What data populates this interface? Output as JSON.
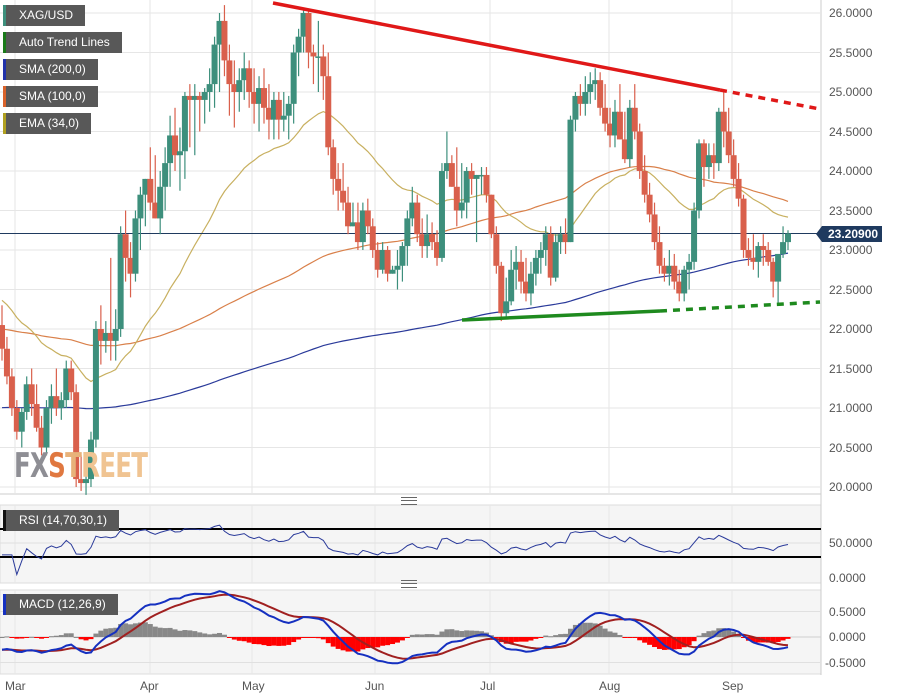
{
  "legend": [
    {
      "label": "XAG/USD",
      "color": "#3d8f7c"
    },
    {
      "label": "Auto Trend Lines",
      "color": "#1a7a1a"
    },
    {
      "label": "SMA (200,0)",
      "color": "#2233aa"
    },
    {
      "label": "SMA (100,0)",
      "color": "#d9622b"
    },
    {
      "label": "EMA (34,0)",
      "color": "#b0a020"
    }
  ],
  "current_price": "23.20900",
  "watermark": {
    "fx": "FX",
    "s": "S",
    "t": "T",
    "reet": "REET"
  },
  "rsi_label": "RSI (14,70,30,1)",
  "macd_label": "MACD (12,26,9)",
  "price_axis": [
    "26.0000",
    "25.5000",
    "25.0000",
    "24.5000",
    "24.0000",
    "23.5000",
    "23.0000",
    "22.5000",
    "22.0000",
    "21.5000",
    "21.0000",
    "20.5000",
    "20.0000"
  ],
  "rsi_axis": [
    "50.0000",
    "0.0000"
  ],
  "macd_axis": [
    "0.5000",
    "0.0000",
    "-0.5000"
  ],
  "x_axis": [
    "Mar",
    "Apr",
    "May",
    "Jun",
    "Jul",
    "Aug",
    "Sep"
  ],
  "colors": {
    "up": "#3d8f7c",
    "down": "#d9604c",
    "sma200": "#2a3a9a",
    "sma100": "#d9804a",
    "ema34": "#c8b060",
    "resistance": "#e01818",
    "support": "#1e8a1e",
    "rsi": "#2a3a9a",
    "macd": "#1530c0",
    "signal": "#a02020",
    "hist_pos": "#888888",
    "hist_neg": "#ff0000"
  },
  "chart_data": {
    "type": "candlestick",
    "title": "XAG/USD",
    "symbol": "XAG/USD",
    "ylim": [
      19.9,
      26.1
    ],
    "yticks": [
      20.0,
      20.5,
      21.0,
      21.5,
      22.0,
      22.5,
      23.0,
      23.5,
      24.0,
      24.5,
      25.0,
      25.5,
      26.0
    ],
    "x_labels": [
      "Mar",
      "Apr",
      "May",
      "Jun",
      "Jul",
      "Aug",
      "Sep"
    ],
    "last_price": 23.209,
    "candles": [
      [
        22.05,
        22.3,
        21.6,
        21.75
      ],
      [
        21.75,
        21.9,
        21.3,
        21.4
      ],
      [
        21.4,
        21.5,
        20.9,
        21.0
      ],
      [
        21.0,
        21.1,
        20.6,
        20.7
      ],
      [
        20.7,
        21.0,
        20.5,
        20.95
      ],
      [
        20.95,
        21.4,
        20.85,
        21.3
      ],
      [
        21.3,
        21.5,
        20.9,
        21.05
      ],
      [
        21.05,
        21.3,
        20.7,
        20.75
      ],
      [
        20.75,
        20.9,
        20.4,
        20.5
      ],
      [
        20.5,
        21.1,
        20.4,
        21.0
      ],
      [
        21.0,
        21.3,
        20.8,
        21.15
      ],
      [
        21.15,
        21.5,
        20.9,
        21.0
      ],
      [
        21.0,
        21.2,
        20.85,
        21.1
      ],
      [
        21.1,
        21.6,
        21.0,
        21.5
      ],
      [
        21.5,
        21.6,
        21.1,
        21.2
      ],
      [
        21.2,
        21.3,
        20.0,
        20.1
      ],
      [
        20.1,
        20.4,
        19.95,
        20.05
      ],
      [
        20.05,
        20.3,
        19.9,
        20.1
      ],
      [
        20.1,
        20.7,
        20.0,
        20.6
      ],
      [
        20.6,
        22.1,
        20.5,
        22.0
      ],
      [
        22.0,
        22.3,
        21.55,
        21.85
      ],
      [
        21.85,
        22.1,
        21.7,
        21.95
      ],
      [
        21.95,
        22.9,
        21.6,
        21.85
      ],
      [
        21.85,
        22.25,
        21.6,
        22.0
      ],
      [
        22.0,
        23.3,
        21.9,
        23.2
      ],
      [
        23.2,
        23.5,
        22.6,
        22.9
      ],
      [
        22.9,
        23.1,
        22.4,
        22.7
      ],
      [
        22.7,
        23.5,
        22.6,
        23.4
      ],
      [
        23.4,
        23.8,
        23.0,
        23.7
      ],
      [
        23.7,
        23.9,
        23.3,
        23.9
      ],
      [
        23.9,
        24.3,
        23.5,
        23.6
      ],
      [
        23.6,
        24.2,
        23.4,
        23.4
      ],
      [
        23.4,
        24.0,
        23.2,
        23.8
      ],
      [
        23.8,
        24.3,
        23.5,
        24.1
      ],
      [
        24.1,
        24.7,
        23.8,
        24.45
      ],
      [
        24.45,
        24.8,
        24.0,
        24.2
      ],
      [
        24.2,
        24.55,
        23.75,
        24.25
      ],
      [
        24.25,
        25.0,
        23.9,
        24.95
      ],
      [
        24.95,
        25.1,
        24.3,
        24.9
      ],
      [
        24.9,
        25.1,
        24.2,
        24.95
      ],
      [
        24.95,
        25.0,
        24.5,
        24.9
      ],
      [
        24.9,
        25.05,
        24.6,
        25.0
      ],
      [
        25.0,
        25.3,
        24.75,
        25.1
      ],
      [
        25.1,
        25.7,
        24.8,
        25.6
      ],
      [
        25.6,
        26.0,
        25.0,
        25.9
      ],
      [
        25.9,
        26.1,
        25.2,
        25.4
      ],
      [
        25.4,
        25.6,
        24.7,
        25.1
      ],
      [
        25.1,
        25.4,
        24.55,
        25.0
      ],
      [
        25.0,
        25.3,
        24.75,
        25.15
      ],
      [
        25.15,
        25.5,
        24.9,
        25.3
      ],
      [
        25.3,
        25.4,
        24.8,
        25.0
      ],
      [
        25.0,
        25.3,
        24.6,
        24.85
      ],
      [
        24.85,
        25.2,
        24.5,
        25.05
      ],
      [
        25.05,
        25.3,
        24.6,
        24.8
      ],
      [
        24.8,
        25.1,
        24.4,
        24.65
      ],
      [
        24.65,
        25.0,
        24.4,
        24.9
      ],
      [
        24.9,
        25.0,
        24.4,
        24.65
      ],
      [
        24.65,
        25.0,
        24.5,
        24.7
      ],
      [
        24.7,
        24.95,
        24.4,
        24.85
      ],
      [
        24.85,
        25.6,
        24.6,
        25.5
      ],
      [
        25.5,
        25.8,
        25.2,
        25.7
      ],
      [
        25.7,
        26.05,
        25.5,
        26.0
      ],
      [
        26.0,
        26.05,
        25.3,
        25.5
      ],
      [
        25.5,
        25.6,
        25.1,
        25.45
      ],
      [
        25.45,
        25.9,
        25.0,
        25.45
      ],
      [
        25.45,
        25.6,
        24.9,
        25.2
      ],
      [
        25.2,
        25.5,
        24.2,
        24.3
      ],
      [
        24.3,
        24.4,
        23.7,
        23.9
      ],
      [
        23.9,
        24.1,
        23.5,
        23.75
      ],
      [
        23.75,
        24.1,
        23.5,
        23.6
      ],
      [
        23.6,
        23.8,
        23.2,
        23.3
      ],
      [
        23.3,
        23.6,
        23.3,
        23.35
      ],
      [
        23.35,
        23.6,
        23.0,
        23.1
      ],
      [
        23.1,
        23.6,
        23.0,
        23.5
      ],
      [
        23.5,
        23.65,
        23.2,
        23.3
      ],
      [
        23.3,
        23.4,
        22.9,
        23.0
      ],
      [
        23.0,
        23.1,
        22.65,
        22.75
      ],
      [
        22.75,
        23.1,
        22.7,
        23.0
      ],
      [
        23.0,
        23.05,
        22.6,
        22.7
      ],
      [
        22.7,
        22.8,
        22.7,
        22.75
      ],
      [
        22.75,
        23.0,
        22.5,
        22.8
      ],
      [
        22.8,
        23.1,
        22.6,
        23.05
      ],
      [
        23.05,
        23.5,
        22.8,
        23.4
      ],
      [
        23.4,
        23.8,
        23.3,
        23.6
      ],
      [
        23.6,
        23.7,
        23.1,
        23.2
      ],
      [
        23.2,
        23.4,
        22.9,
        23.05
      ],
      [
        23.05,
        23.45,
        22.9,
        23.2
      ],
      [
        23.2,
        23.35,
        23.0,
        23.1
      ],
      [
        23.1,
        23.25,
        22.8,
        22.9
      ],
      [
        22.9,
        24.1,
        22.85,
        24.0
      ],
      [
        24.0,
        24.5,
        23.9,
        24.1
      ],
      [
        24.1,
        24.2,
        23.8,
        23.8
      ],
      [
        23.8,
        24.3,
        23.3,
        23.5
      ],
      [
        23.5,
        24.1,
        23.4,
        23.6
      ],
      [
        23.6,
        24.05,
        23.4,
        24.0
      ],
      [
        24.0,
        24.1,
        23.7,
        23.9
      ],
      [
        23.9,
        23.95,
        23.1,
        23.95
      ],
      [
        23.95,
        24.05,
        23.7,
        23.95
      ],
      [
        23.95,
        24.05,
        23.6,
        23.7
      ],
      [
        23.7,
        23.7,
        23.15,
        23.2
      ],
      [
        23.2,
        23.3,
        22.7,
        22.8
      ],
      [
        22.8,
        22.85,
        22.1,
        22.2
      ],
      [
        22.2,
        22.65,
        22.15,
        22.35
      ],
      [
        22.35,
        23.0,
        22.3,
        22.75
      ],
      [
        22.75,
        23.05,
        22.5,
        22.85
      ],
      [
        22.85,
        23.0,
        22.45,
        22.6
      ],
      [
        22.6,
        22.9,
        22.35,
        22.45
      ],
      [
        22.45,
        22.85,
        22.3,
        22.7
      ],
      [
        22.7,
        23.0,
        22.55,
        22.9
      ],
      [
        22.9,
        23.1,
        22.7,
        23.0
      ],
      [
        23.0,
        23.3,
        22.8,
        23.2
      ],
      [
        23.2,
        23.3,
        22.55,
        22.65
      ],
      [
        22.65,
        23.2,
        22.6,
        23.1
      ],
      [
        23.1,
        23.3,
        22.95,
        23.2
      ],
      [
        23.2,
        23.4,
        22.95,
        23.1
      ],
      [
        23.1,
        24.7,
        23.1,
        24.65
      ],
      [
        24.65,
        25.0,
        24.5,
        24.95
      ],
      [
        24.95,
        25.1,
        24.7,
        24.85
      ],
      [
        24.85,
        25.2,
        24.7,
        25.0
      ],
      [
        25.0,
        25.25,
        24.85,
        25.1
      ],
      [
        25.1,
        25.3,
        24.9,
        25.15
      ],
      [
        25.15,
        25.25,
        24.7,
        24.8
      ],
      [
        24.8,
        25.1,
        24.5,
        24.6
      ],
      [
        24.6,
        24.8,
        24.3,
        24.45
      ],
      [
        24.45,
        24.9,
        24.3,
        24.75
      ],
      [
        24.75,
        25.1,
        24.4,
        24.4
      ],
      [
        24.4,
        24.75,
        24.1,
        24.15
      ],
      [
        24.15,
        24.9,
        24.05,
        24.8
      ],
      [
        24.8,
        25.1,
        24.4,
        24.5
      ],
      [
        24.5,
        24.6,
        23.9,
        24.0
      ],
      [
        24.0,
        24.2,
        23.6,
        23.7
      ],
      [
        23.7,
        23.85,
        23.35,
        23.45
      ],
      [
        23.45,
        23.6,
        23.0,
        23.1
      ],
      [
        23.1,
        23.3,
        22.7,
        22.8
      ],
      [
        22.8,
        22.9,
        22.6,
        22.7
      ],
      [
        22.7,
        23.0,
        22.55,
        22.8
      ],
      [
        22.8,
        22.95,
        22.5,
        22.6
      ],
      [
        22.6,
        22.75,
        22.35,
        22.45
      ],
      [
        22.45,
        22.8,
        22.35,
        22.75
      ],
      [
        22.75,
        22.95,
        22.5,
        22.85
      ],
      [
        22.85,
        23.6,
        22.75,
        23.5
      ],
      [
        23.5,
        24.4,
        23.4,
        24.35
      ],
      [
        24.35,
        24.4,
        23.8,
        24.05
      ],
      [
        24.05,
        24.35,
        23.9,
        24.2
      ],
      [
        24.2,
        24.35,
        23.9,
        24.1
      ],
      [
        24.1,
        24.8,
        24.0,
        24.75
      ],
      [
        24.75,
        25.0,
        24.3,
        24.5
      ],
      [
        24.5,
        24.8,
        24.1,
        24.2
      ],
      [
        24.2,
        24.4,
        23.8,
        23.9
      ],
      [
        23.9,
        24.1,
        23.55,
        23.65
      ],
      [
        23.65,
        23.7,
        22.9,
        23.0
      ],
      [
        23.0,
        23.15,
        22.8,
        22.9
      ],
      [
        22.9,
        23.2,
        22.75,
        22.85
      ],
      [
        22.85,
        23.1,
        22.65,
        23.05
      ],
      [
        23.05,
        23.2,
        22.8,
        23.0
      ],
      [
        23.0,
        23.1,
        22.8,
        22.85
      ],
      [
        22.85,
        22.9,
        22.4,
        22.6
      ],
      [
        22.6,
        22.95,
        22.3,
        22.95
      ],
      [
        22.95,
        23.3,
        22.9,
        23.1
      ],
      [
        23.1,
        23.25,
        23.0,
        23.209
      ]
    ],
    "overlays": [
      {
        "name": "SMA (200,0)",
        "approx_range": [
          20.9,
          23.5
        ]
      },
      {
        "name": "SMA (100,0)",
        "approx_range": [
          21.9,
          24.1
        ]
      },
      {
        "name": "EMA (34,0)",
        "approx_range": [
          21.7,
          24.7
        ]
      }
    ],
    "trend_lines": [
      {
        "name": "resistance",
        "from": [
          "May",
          26.1
        ],
        "to": [
          "late Aug",
          25.03
        ],
        "extended_to": 24.8,
        "color": "red"
      },
      {
        "name": "support",
        "from": [
          "late Jun",
          22.12
        ],
        "to": [
          "mid Aug",
          22.24
        ],
        "extended_to": 22.33,
        "color": "green"
      }
    ],
    "rsi": {
      "label": "RSI (14,70,30,1)",
      "levels": [
        70,
        30
      ],
      "yticks": [
        50,
        0
      ],
      "last": 47
    },
    "macd": {
      "label": "MACD (12,26,9)",
      "yticks": [
        0.5,
        0.0,
        -0.5
      ],
      "last_macd": -0.17,
      "last_signal": -0.12
    }
  }
}
